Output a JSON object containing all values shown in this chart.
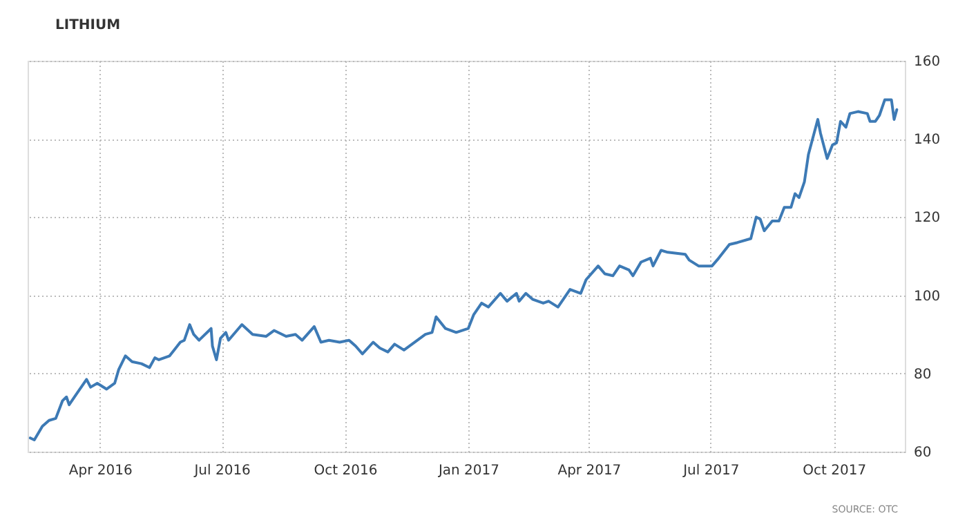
{
  "chart_data": {
    "type": "line",
    "title": "LITHIUM",
    "annotations": [
      "SOURCE: OTC"
    ],
    "x": [
      "2016-02-09",
      "2016-02-12",
      "2016-02-18",
      "2016-02-23",
      "2016-02-28",
      "2016-03-04",
      "2016-03-07",
      "2016-03-09",
      "2016-03-14",
      "2016-03-22",
      "2016-03-25",
      "2016-03-30",
      "2016-04-06",
      "2016-04-12",
      "2016-04-15",
      "2016-04-20",
      "2016-04-25",
      "2016-05-02",
      "2016-05-08",
      "2016-05-12",
      "2016-05-15",
      "2016-05-23",
      "2016-05-31",
      "2016-06-03",
      "2016-06-07",
      "2016-06-10",
      "2016-06-14",
      "2016-06-23",
      "2016-06-24",
      "2016-06-27",
      "2016-06-30",
      "2016-07-04",
      "2016-07-06",
      "2016-07-16",
      "2016-07-24",
      "2016-08-03",
      "2016-08-09",
      "2016-08-18",
      "2016-08-25",
      "2016-08-30",
      "2016-09-08",
      "2016-09-13",
      "2016-09-19",
      "2016-09-27",
      "2016-10-04",
      "2016-10-09",
      "2016-10-14",
      "2016-10-22",
      "2016-10-27",
      "2016-11-02",
      "2016-11-07",
      "2016-11-14",
      "2016-11-20",
      "2016-11-30",
      "2016-12-05",
      "2016-12-08",
      "2016-12-15",
      "2016-12-23",
      "2017-01-01",
      "2017-01-05",
      "2017-01-11",
      "2017-01-16",
      "2017-01-25",
      "2017-01-30",
      "2017-02-06",
      "2017-02-08",
      "2017-02-13",
      "2017-02-18",
      "2017-02-26",
      "2017-03-02",
      "2017-03-09",
      "2017-03-18",
      "2017-03-26",
      "2017-03-30",
      "2017-04-08",
      "2017-04-13",
      "2017-04-19",
      "2017-04-24",
      "2017-05-01",
      "2017-05-04",
      "2017-05-10",
      "2017-05-17",
      "2017-05-19",
      "2017-05-25",
      "2017-05-30",
      "2017-06-12",
      "2017-06-15",
      "2017-06-22",
      "2017-07-02",
      "2017-07-07",
      "2017-07-15",
      "2017-07-21",
      "2017-07-31",
      "2017-08-04",
      "2017-08-07",
      "2017-08-10",
      "2017-08-16",
      "2017-08-21",
      "2017-08-25",
      "2017-08-30",
      "2017-09-02",
      "2017-09-05",
      "2017-09-09",
      "2017-09-12",
      "2017-09-19",
      "2017-09-21",
      "2017-09-26",
      "2017-09-30",
      "2017-10-03",
      "2017-10-06",
      "2017-10-10",
      "2017-10-13",
      "2017-10-19",
      "2017-10-26",
      "2017-10-28",
      "2017-11-01",
      "2017-11-04",
      "2017-11-08",
      "2017-11-13",
      "2017-11-15",
      "2017-11-17"
    ],
    "series": [
      {
        "color": "#3d7ab5",
        "values": [
          63.5,
          63,
          66.5,
          68,
          68.5,
          73,
          74,
          72,
          74.5,
          78.5,
          76.5,
          77.5,
          76,
          77.5,
          81,
          84.5,
          83,
          82.5,
          81.5,
          84,
          83.5,
          84.5,
          88,
          88.5,
          92.5,
          90,
          88.5,
          91.5,
          87,
          83.5,
          89,
          90.5,
          88.5,
          92.5,
          90,
          89.5,
          91,
          89.5,
          90,
          88.5,
          92,
          88,
          88.5,
          88,
          88.5,
          87,
          85,
          88,
          86.5,
          85.5,
          87.5,
          86,
          87.5,
          90,
          90.5,
          94.5,
          91.5,
          90.5,
          91.5,
          95,
          98,
          97,
          100.5,
          98.5,
          100.5,
          98.5,
          100.5,
          99,
          98,
          98.5,
          97,
          101.5,
          100.5,
          104,
          107.5,
          105.5,
          105,
          107.5,
          106.5,
          105,
          108.5,
          109.5,
          107.5,
          111.5,
          111,
          110.5,
          109,
          107.5,
          107.5,
          109.5,
          113,
          113.5,
          114.5,
          120,
          119.5,
          116.5,
          119,
          119,
          122.5,
          122.5,
          126,
          125,
          129,
          136,
          145,
          141.5,
          135,
          138.5,
          139,
          144.5,
          143,
          146.5,
          147,
          146.5,
          144.5,
          144.5,
          146,
          150,
          150,
          145,
          147.5
        ]
      }
    ],
    "xlim": [
      "2016-02-07",
      "2017-11-23"
    ],
    "xticks": [
      {
        "value": "2016-04-01",
        "label": "Apr 2016"
      },
      {
        "value": "2016-07-01",
        "label": "Jul 2016"
      },
      {
        "value": "2016-10-01",
        "label": "Oct 2016"
      },
      {
        "value": "2017-01-01",
        "label": "Jan 2017"
      },
      {
        "value": "2017-04-01",
        "label": "Apr 2017"
      },
      {
        "value": "2017-07-01",
        "label": "Jul 2017"
      },
      {
        "value": "2017-10-01",
        "label": "Oct 2017"
      }
    ],
    "ylim": [
      60,
      160
    ],
    "yticks": [
      60,
      80,
      100,
      120,
      140,
      160
    ],
    "grid": true,
    "marker": "none",
    "line_style": "solid"
  }
}
